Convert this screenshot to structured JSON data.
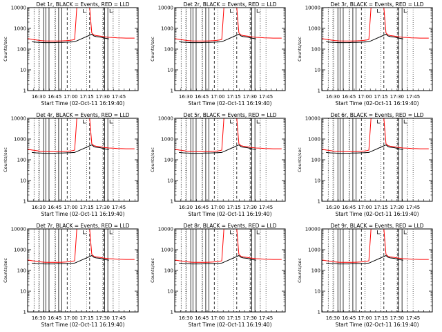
{
  "figure": {
    "xlabel": "Start Time (02-Oct-11 16:19:40)",
    "ylabel": "Counts/sec"
  },
  "shared_axes": {
    "x_ticks": [
      "16:30",
      "16:45",
      "17:00",
      "17:15",
      "17:30",
      "17:45"
    ],
    "x_range": [
      "16:19:40",
      "18:03:00"
    ],
    "y_ticks": [
      "1",
      "10",
      "100",
      "1000",
      "10000"
    ],
    "y_range": [
      1,
      10000
    ],
    "y_scale": "log",
    "grid": "vertical dotted at hour-quarter ticks"
  },
  "colors": {
    "events": "#000000",
    "lld": "#ff0000",
    "background": "#ffffff"
  },
  "panel_titles": [
    "Det 1r, BLACK = Events, RED = LLD",
    "Det 2r, BLACK = Events, RED = LLD",
    "Det 3r, BLACK = Events, RED = LLD",
    "Det 4r, BLACK = Events, RED = LLD",
    "Det 5r, BLACK = Events, RED = LLD",
    "Det 6r, BLACK = Events, RED = LLD",
    "Det 7r, BLACK = Events, RED = LLD",
    "Det 8r, BLACK = Events, RED = LLD",
    "Det 9r, BLACK = Events, RED = LLD"
  ],
  "chart_data": {
    "type": "line",
    "panels": 9,
    "x_unit": "minutes since 16:19:40",
    "series": [
      {
        "name": "LLD",
        "x": [
          0,
          4,
          8,
          12,
          16,
          20,
          24,
          28,
          32,
          36,
          40,
          42,
          44,
          46,
          48,
          56,
          58,
          60,
          62,
          64,
          68,
          72,
          76,
          80,
          84,
          88,
          92,
          96,
          100
        ],
        "values": [
          320,
          295,
          275,
          260,
          250,
          245,
          245,
          245,
          250,
          255,
          265,
          275,
          290,
          10000,
          10000,
          10000,
          10000,
          600,
          480,
          450,
          420,
          390,
          370,
          360,
          350,
          345,
          340,
          340,
          340
        ]
      },
      {
        "name": "Events",
        "x": [
          4,
          8,
          12,
          16,
          20,
          24,
          28,
          32,
          36,
          40,
          44,
          60,
          62,
          64,
          68,
          72,
          76
        ],
        "values": [
          225,
          215,
          210,
          205,
          205,
          205,
          210,
          210,
          215,
          220,
          225,
          520,
          430,
          400,
          380,
          340,
          310
        ]
      }
    ],
    "solid_markers_x": [
      15,
      17,
      20,
      29,
      32,
      72,
      75
    ],
    "dashed_markers_x": [
      37,
      58,
      71
    ],
    "dotted_markers_x": [
      6,
      11,
      26,
      80
    ]
  }
}
